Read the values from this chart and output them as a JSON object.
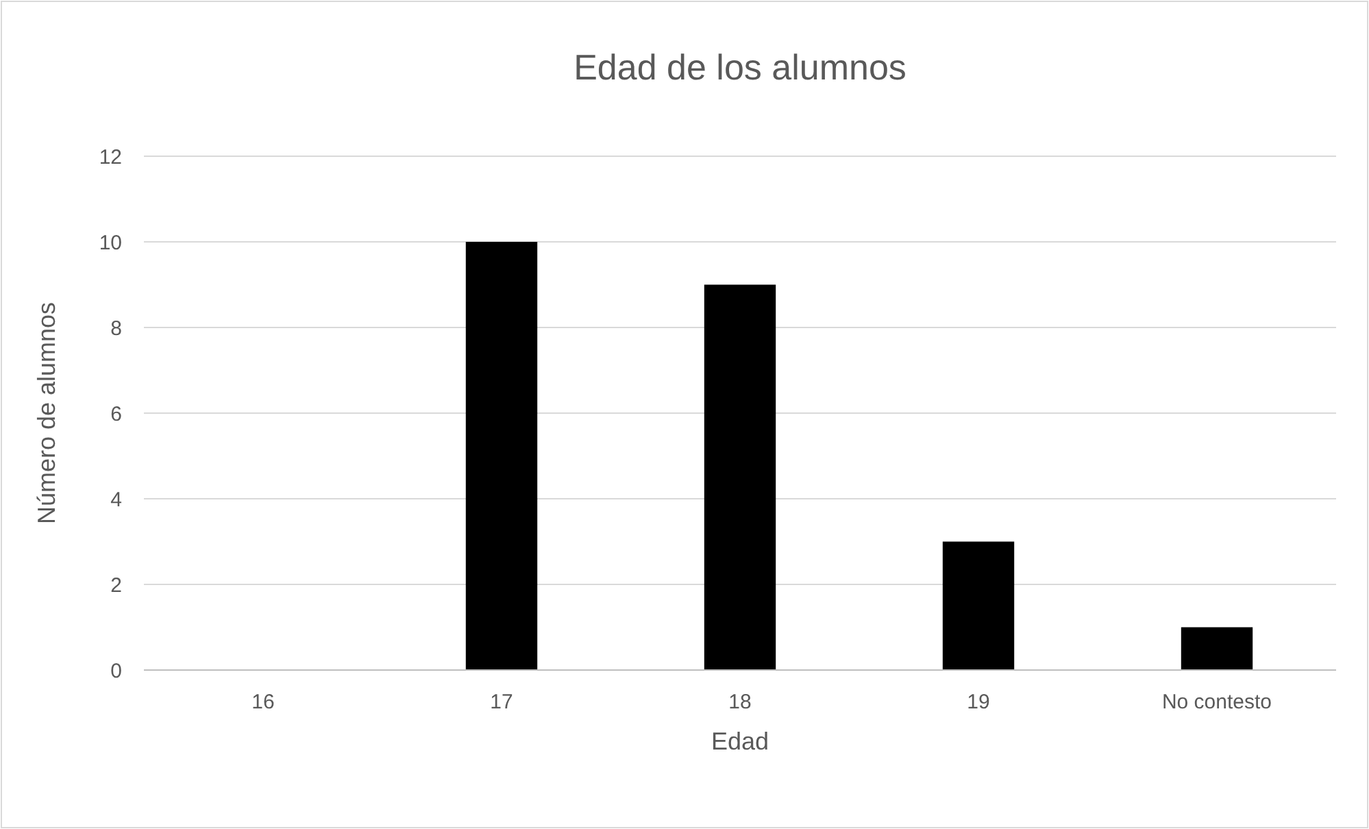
{
  "chart_data": {
    "type": "bar",
    "title": "Edad de los alumnos",
    "xlabel": "Edad",
    "ylabel": "Número de alumnos",
    "categories": [
      "16",
      "17",
      "18",
      "19",
      "No contesto"
    ],
    "values": [
      0,
      10,
      9,
      3,
      1
    ],
    "color": "#000000",
    "ylim": [
      0,
      12
    ],
    "yticks": [
      0,
      2,
      4,
      6,
      8,
      10,
      12
    ],
    "grid": "y"
  }
}
